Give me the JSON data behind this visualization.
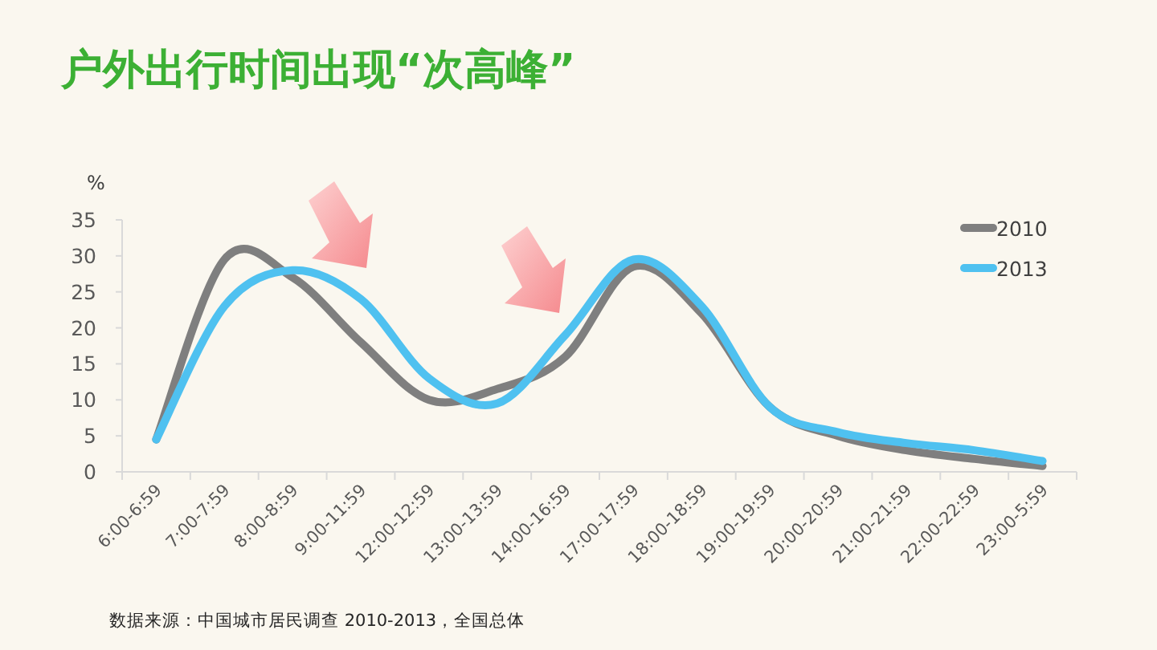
{
  "chart_data": {
    "type": "line",
    "title": "户外出行时间出现“次高峰”",
    "ylabel": "%",
    "categories": [
      "6:00-6:59",
      "7:00-7:59",
      "8:00-8:59",
      "9:00-11:59",
      "12:00-12:59",
      "13:00-13:59",
      "14:00-16:59",
      "17:00-17:59",
      "18:00-18:59",
      "19:00-19:59",
      "20:00-20:59",
      "21:00-21:59",
      "22:00-22:59",
      "23:00-5:59"
    ],
    "series": [
      {
        "name": "2010",
        "color": "#7f7f7f",
        "values": [
          4.5,
          29.5,
          27,
          18,
          10,
          11.5,
          16,
          28.5,
          22,
          9,
          5,
          3,
          1.8,
          0.8
        ]
      },
      {
        "name": "2013",
        "color": "#4fc1f0",
        "values": [
          4.5,
          23,
          28,
          24,
          13,
          9.5,
          19,
          29.5,
          23,
          9,
          5.5,
          4,
          3,
          1.5
        ]
      }
    ],
    "ylim": [
      0,
      35
    ],
    "yticks": [
      0,
      5,
      10,
      15,
      20,
      25,
      30,
      35
    ],
    "grid": false,
    "legend": "top right",
    "marker": "none",
    "line_style": "solid",
    "annotations": [
      "数据来源：中国城市居民调查 2010-2013，全国总体"
    ]
  }
}
